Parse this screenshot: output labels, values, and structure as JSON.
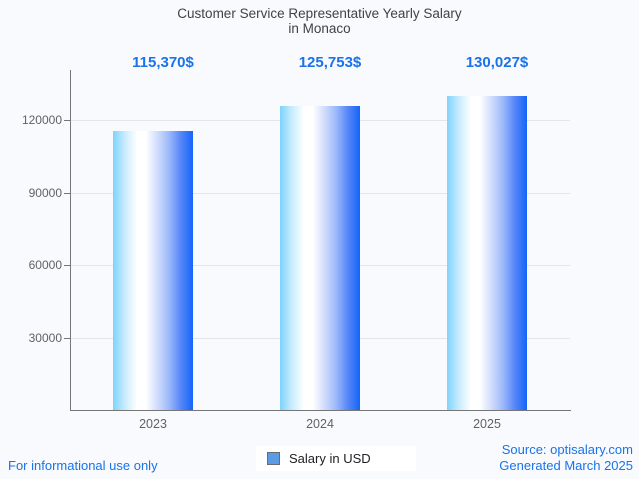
{
  "title": {
    "line1": "Customer Service Representative Yearly Salary",
    "line2": "in Monaco"
  },
  "chart_data": {
    "type": "bar",
    "categories": [
      "2023",
      "2024",
      "2025"
    ],
    "series": [
      {
        "name": "Salary in USD",
        "values": [
          115370,
          125753,
          130027
        ]
      }
    ],
    "value_labels": [
      "115,370$",
      "125,753$",
      "130,027$"
    ],
    "title": "Customer Service Representative Yearly Salary in Monaco",
    "xlabel": "",
    "ylabel": "",
    "yticks": [
      30000,
      60000,
      90000,
      120000
    ],
    "ylim": [
      0,
      140000
    ],
    "grid": true,
    "legend_position": "bottom"
  },
  "legend": {
    "label": "Salary in USD"
  },
  "footer": {
    "left": "For informational use only",
    "source": "Source: optisalary.com",
    "generated": "Generated March 2025"
  },
  "colors": {
    "accent_blue": "#1a73e8",
    "background": "#f8fafd",
    "bar_gradient_left": "#7ed3fc",
    "bar_gradient_middle": "#ffffff",
    "bar_gradient_right": "#1465f9",
    "axis_gray": "#767676",
    "gridline_gray": "#e3e6ea",
    "tick_text_gray": "#5f6368",
    "title_gray": "#424242",
    "legend_swatch": "#5b9ce5"
  }
}
